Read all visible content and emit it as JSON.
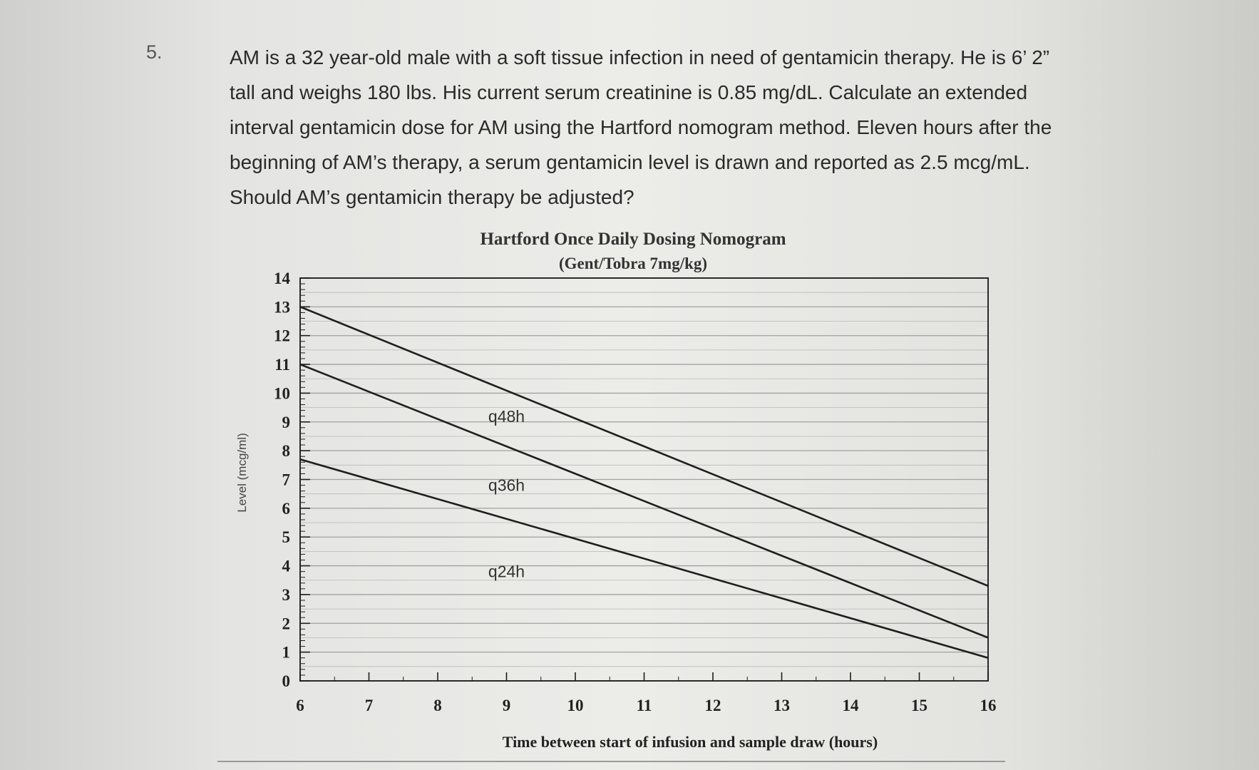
{
  "question": {
    "number": "5.",
    "lines": [
      "AM is a 32 year-old male with a soft tissue infection in need of gentamicin therapy.  He is 6’ 2”",
      "tall and weighs 180 lbs.  His current serum creatinine is 0.85 mg/dL.  Calculate an extended",
      "interval gentamicin dose for AM using the Hartford nomogram method.  Eleven hours after the",
      "beginning of AM’s therapy, a serum gentamicin level is drawn and reported as 2.5 mcg/mL.",
      "Should AM’s gentamicin therapy be adjusted?"
    ]
  },
  "chart_data": {
    "type": "line",
    "title": "Hartford Once Daily Dosing Nomogram",
    "subtitle": "(Gent/Tobra 7mg/kg)",
    "xlabel": "Time between start of infusion and sample draw (hours)",
    "ylabel": "Level (mcg/ml)",
    "xlim": [
      6,
      16
    ],
    "ylim": [
      0,
      14
    ],
    "x_ticks": [
      6,
      7,
      8,
      9,
      10,
      11,
      12,
      13,
      14,
      15,
      16
    ],
    "y_ticks": [
      0,
      1,
      2,
      3,
      4,
      5,
      6,
      7,
      8,
      9,
      10,
      11,
      12,
      13,
      14
    ],
    "grid": true,
    "series": [
      {
        "name": "q48h",
        "x": [
          6,
          16
        ],
        "y": [
          13.0,
          3.3
        ]
      },
      {
        "name": "q36h",
        "x": [
          6,
          16
        ],
        "y": [
          11.0,
          1.5
        ]
      },
      {
        "name": "q24h",
        "x": [
          6,
          16
        ],
        "y": [
          7.7,
          0.8
        ]
      }
    ],
    "series_labels": [
      {
        "name": "q48h",
        "x": 9,
        "y": 9.0
      },
      {
        "name": "q36h",
        "x": 9,
        "y": 6.6
      },
      {
        "name": "q24h",
        "x": 9,
        "y": 3.6
      }
    ],
    "colors": {
      "line": "#1e1e1e",
      "grid": "#9a9a9a",
      "frame": "#2a2a2a"
    }
  }
}
